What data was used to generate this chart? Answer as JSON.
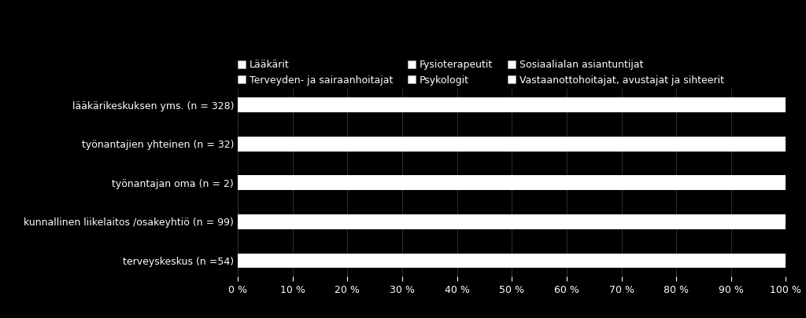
{
  "categories": [
    "lääkärikeskuksen yms. (n = 328)",
    "työnantajien yhteinen (n = 32)",
    "työnantajan oma (n = 2)",
    "kunnallinen liikelaitos /osakeyhtiö (n = 99)",
    "terveyskeskus (n =54)"
  ],
  "legend_labels_row1": [
    "Lääkärit",
    "Terveyden- ja sairaanhoitajat",
    "Fysioterapeutit"
  ],
  "legend_labels_row2": [
    "Psykologit",
    "Sosiaalialan asiantuntijat",
    "Vastaanottohoitajat, avustajat ja sihteerit"
  ],
  "bar_color": "#ffffff",
  "background_color": "#000000",
  "text_color": "#ffffff",
  "bar_values": [
    100,
    100,
    100,
    100,
    100
  ],
  "xlim": [
    0,
    100
  ],
  "xtick_labels": [
    "0 %",
    "10 %",
    "20 %",
    "30 %",
    "40 %",
    "50 %",
    "60 %",
    "70 %",
    "80 %",
    "90 %",
    "100 %"
  ],
  "xtick_values": [
    0,
    10,
    20,
    30,
    40,
    50,
    60,
    70,
    80,
    90,
    100
  ],
  "bar_height": 0.38,
  "figsize": [
    10.24,
    4.05
  ],
  "dpi": 100,
  "grid_color": "#444444",
  "grid_linewidth": 0.5,
  "legend_fontsize": 9,
  "tick_fontsize": 9,
  "ytick_fontsize": 9
}
